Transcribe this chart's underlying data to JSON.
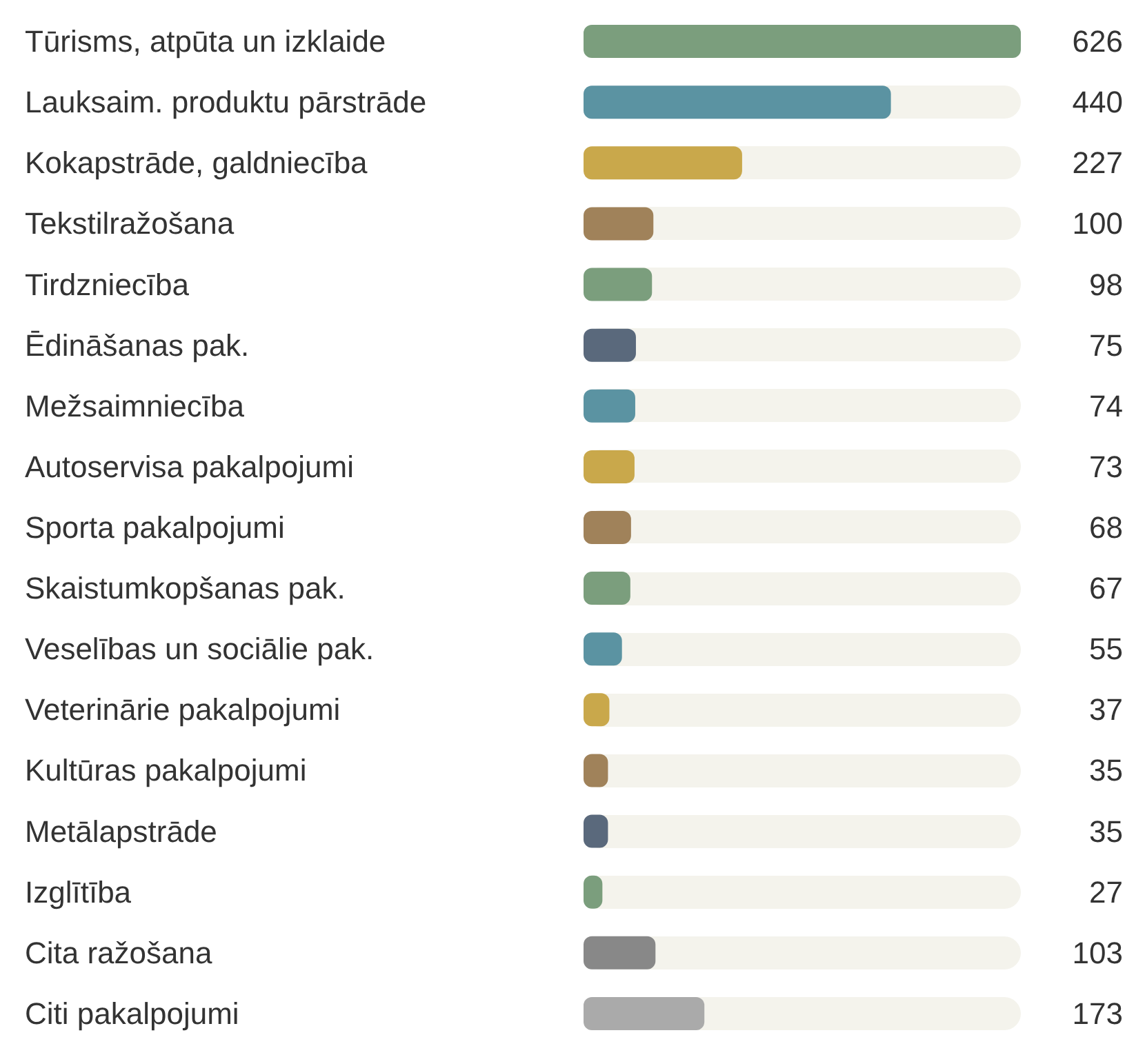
{
  "chart_data": {
    "type": "bar",
    "orientation": "horizontal",
    "data_labels": true,
    "categories": [
      "Tūrisms, atpūta un izklaide",
      "Lauksaim. produktu pārstrāde",
      "Kokapstrāde, galdniecība",
      "Tekstilražošana",
      "Tirdzniecība",
      "Ēdināšanas pak.",
      "Mežsaimniecība",
      "Autoservisa pakalpojumi",
      "Sporta pakalpojumi",
      "Skaistumkopšanas pak.",
      "Veselības un sociālie pak.",
      "Veterinārie pakalpojumi",
      "Kultūras pakalpojumi",
      "Metālapstrāde",
      "Izglītība",
      "Cita ražošana",
      "Citi pakalpojumi"
    ],
    "values": [
      626,
      440,
      227,
      100,
      98,
      75,
      74,
      73,
      68,
      67,
      55,
      37,
      35,
      35,
      27,
      103,
      173
    ],
    "colors": [
      "#7b9e7d",
      "#5b93a2",
      "#c9a84b",
      "#a0825a",
      "#7b9e7d",
      "#5a697c",
      "#5b93a2",
      "#c9a84b",
      "#a0825a",
      "#7b9e7d",
      "#5b93a2",
      "#c9a84b",
      "#a0825a",
      "#5a697c",
      "#7b9e7d",
      "#888888",
      "#aaaaaa"
    ]
  }
}
